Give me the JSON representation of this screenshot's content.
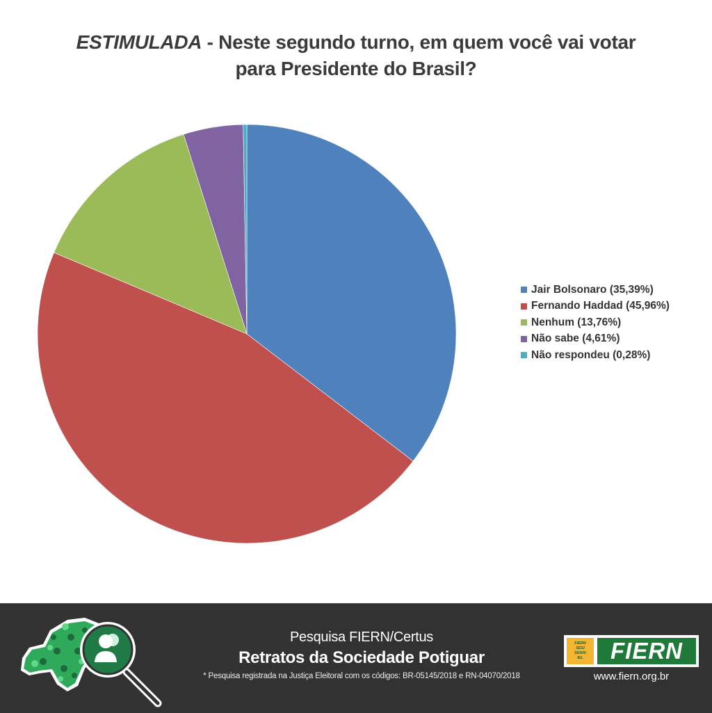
{
  "title": {
    "emphasis": "ESTIMULADA",
    "line1_rest": " - Neste segundo turno, em quem você vai votar",
    "line2": "para Presidente do Brasil?"
  },
  "chart_data": {
    "type": "pie",
    "title": "ESTIMULADA - Neste segundo turno, em quem você vai votar para Presidente do Brasil?",
    "categories": [
      "Jair Bolsonaro",
      "Fernando Haddad",
      "Nenhum",
      "Não sabe",
      "Não respondeu"
    ],
    "values": [
      35.39,
      45.96,
      13.76,
      4.61,
      0.28
    ],
    "unit": "%",
    "colors": [
      "#4f81bd",
      "#c0504d",
      "#9bbb59",
      "#8064a2",
      "#4bacc6"
    ],
    "start_angle_deg": 0,
    "direction": "clockwise",
    "legend_position": "right",
    "legend": [
      "Jair Bolsonaro (35,39%)",
      "Fernando Haddad (45,96%)",
      "Nenhum (13,76%)",
      "Não sabe (4,61%)",
      "Não respondeu (0,28%)"
    ],
    "xlabel": "",
    "ylabel": ""
  },
  "legend": {
    "items": [
      {
        "label": "Jair Bolsonaro (35,39%)",
        "color": "#4f81bd"
      },
      {
        "label": "Fernando Haddad (45,96%)",
        "color": "#c0504d"
      },
      {
        "label": "Nenhum (13,76%)",
        "color": "#9bbb59"
      },
      {
        "label": "Não sabe (4,61%)",
        "color": "#8064a2"
      },
      {
        "label": "Não respondeu (0,28%)",
        "color": "#4bacc6"
      }
    ]
  },
  "footer": {
    "subtitle": "Pesquisa FIERN/Certus",
    "main_title": "Retratos da Sociedade Potiguar",
    "note": "* Pesquisa registrada na Justiça Eleitoral com os códigos: BR-05145/2018 e RN-04070/2018",
    "logo": {
      "small_lines": [
        "FIERN",
        "SESI",
        "SENAI",
        "IEL"
      ],
      "wordmark": "FIERN"
    },
    "url": "www.fiern.org.br",
    "background": "#333232"
  }
}
